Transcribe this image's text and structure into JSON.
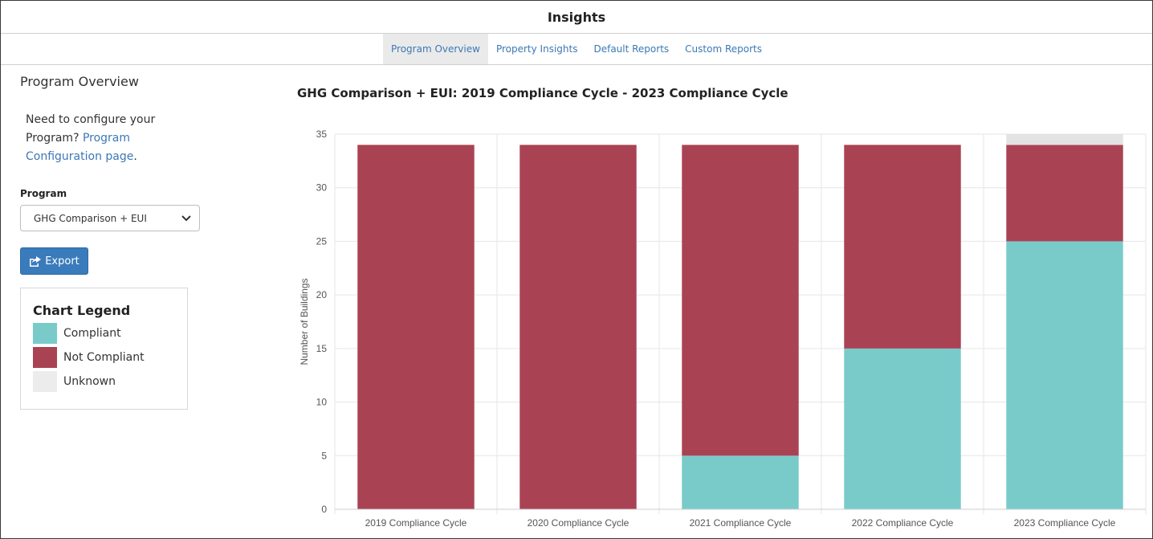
{
  "header": {
    "title": "Insights"
  },
  "tabs": [
    {
      "label": "Program Overview",
      "active": true
    },
    {
      "label": "Property Insights",
      "active": false
    },
    {
      "label": "Default Reports",
      "active": false
    },
    {
      "label": "Custom Reports",
      "active": false
    }
  ],
  "sidebar": {
    "title": "Program Overview",
    "config_text_before": "Need to configure your Program?",
    "config_link": "Program Configuration page",
    "config_text_after": ".",
    "program_label": "Program",
    "program_select_value": "GHG Comparison + EUI",
    "export_label": "Export",
    "legend": {
      "title": "Chart Legend",
      "items": [
        {
          "label": "Compliant",
          "color": "#79cbca"
        },
        {
          "label": "Not Compliant",
          "color": "#a94354"
        },
        {
          "label": "Unknown",
          "color": "#e3e3e3"
        }
      ]
    }
  },
  "chart_data": {
    "type": "bar",
    "stacked": true,
    "title": "GHG Comparison + EUI: 2019 Compliance Cycle - 2023 Compliance Cycle",
    "xlabel": "",
    "ylabel": "Number of Buildings",
    "ylim": [
      0,
      35
    ],
    "yticks": [
      0,
      5,
      10,
      15,
      20,
      25,
      30,
      35
    ],
    "grid": true,
    "categories": [
      "2019 Compliance Cycle",
      "2020 Compliance Cycle",
      "2021 Compliance Cycle",
      "2022 Compliance Cycle",
      "2023 Compliance Cycle"
    ],
    "series": [
      {
        "name": "Compliant",
        "color": "#79cbca",
        "values": [
          0,
          0,
          5,
          15,
          25
        ]
      },
      {
        "name": "Not Compliant",
        "color": "#a94354",
        "values": [
          34,
          34,
          29,
          19,
          9
        ]
      },
      {
        "name": "Unknown",
        "color": "#e3e3e3",
        "values": [
          0,
          0,
          0,
          0,
          1
        ]
      }
    ]
  }
}
